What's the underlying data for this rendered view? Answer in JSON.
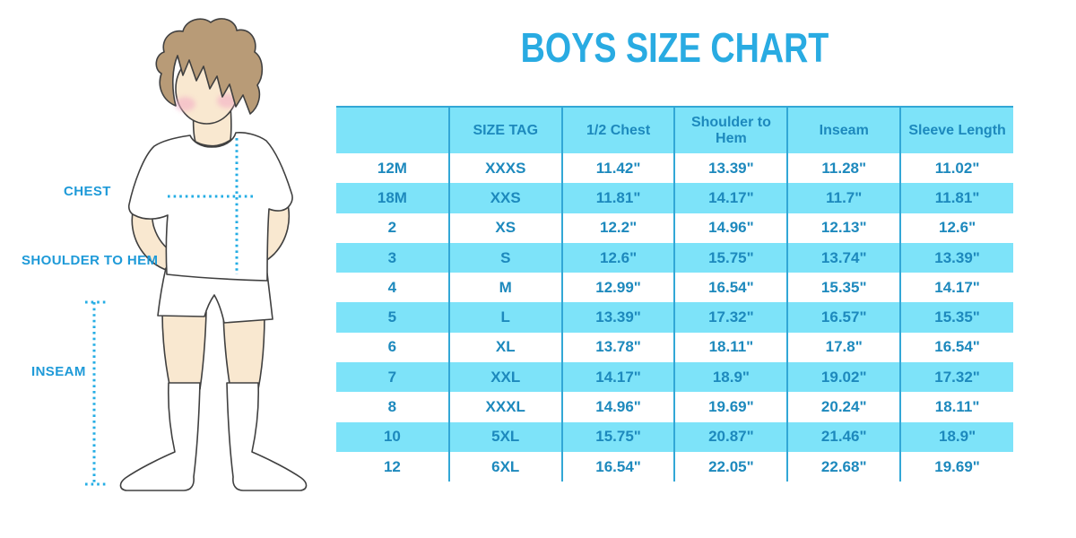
{
  "title": "BOYS SIZE CHART",
  "diagram": {
    "chest_label": "CHEST",
    "shoulder_label": "SHOULDER TO HEM",
    "inseam_label": "INSEAM"
  },
  "colors": {
    "accent": "#29abe2",
    "accent_dots": "#24ade4",
    "label_text": "#1e9ad8",
    "table_fill": "#7de3f9",
    "table_border": "#32a7d6",
    "table_text": "#1d89bd",
    "skin": "#f9e8d0",
    "hair": "#b89b77",
    "cheek": "#f3aec6",
    "outline": "#404040"
  },
  "chart_data": {
    "type": "table",
    "title": "BOYS SIZE CHART",
    "columns": [
      "",
      "SIZE TAG",
      "1/2 Chest",
      "Shoulder to Hem",
      "Inseam",
      "Sleeve Length"
    ],
    "rows": [
      [
        "12M",
        "XXXS",
        "11.42\"",
        "13.39\"",
        "11.28\"",
        "11.02\""
      ],
      [
        "18M",
        "XXS",
        "11.81\"",
        "14.17\"",
        "11.7\"",
        "11.81\""
      ],
      [
        "2",
        "XS",
        "12.2\"",
        "14.96\"",
        "12.13\"",
        "12.6\""
      ],
      [
        "3",
        "S",
        "12.6\"",
        "15.75\"",
        "13.74\"",
        "13.39\""
      ],
      [
        "4",
        "M",
        "12.99\"",
        "16.54\"",
        "15.35\"",
        "14.17\""
      ],
      [
        "5",
        "L",
        "13.39\"",
        "17.32\"",
        "16.57\"",
        "15.35\""
      ],
      [
        "6",
        "XL",
        "13.78\"",
        "18.11\"",
        "17.8\"",
        "16.54\""
      ],
      [
        "7",
        "XXL",
        "14.17\"",
        "18.9\"",
        "19.02\"",
        "17.32\""
      ],
      [
        "8",
        "XXXL",
        "14.96\"",
        "19.69\"",
        "20.24\"",
        "18.11\""
      ],
      [
        "10",
        "5XL",
        "15.75\"",
        "20.87\"",
        "21.46\"",
        "18.9\""
      ],
      [
        "12",
        "6XL",
        "16.54\"",
        "22.05\"",
        "22.68\"",
        "19.69\""
      ]
    ]
  }
}
